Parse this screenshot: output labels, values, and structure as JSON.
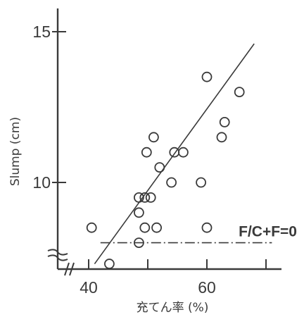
{
  "chart_data": {
    "type": "scatter",
    "xlabel": "充てん率 (%)",
    "ylabel": "Slump (cm)",
    "xlim": [
      34,
      73
    ],
    "ylim": [
      6.5,
      16
    ],
    "x_ticks": [
      40,
      50,
      60,
      70
    ],
    "x_tick_labels": [
      "40",
      "",
      "60",
      ""
    ],
    "y_ticks": [
      10,
      15
    ],
    "y_tick_labels": [
      "10",
      "15"
    ],
    "axis_break": true,
    "grid": false,
    "points": [
      {
        "x": 40.5,
        "y": 8.5
      },
      {
        "x": 43.5,
        "y": 7.3
      },
      {
        "x": 48.5,
        "y": 8.0
      },
      {
        "x": 48.5,
        "y": 9.0
      },
      {
        "x": 48.5,
        "y": 9.5
      },
      {
        "x": 49.5,
        "y": 9.5
      },
      {
        "x": 49.5,
        "y": 8.5
      },
      {
        "x": 50.5,
        "y": 9.5
      },
      {
        "x": 51.5,
        "y": 8.5
      },
      {
        "x": 49.8,
        "y": 11.0
      },
      {
        "x": 51.0,
        "y": 11.5
      },
      {
        "x": 52.0,
        "y": 10.5
      },
      {
        "x": 54.0,
        "y": 10.0
      },
      {
        "x": 54.5,
        "y": 11.0
      },
      {
        "x": 56.0,
        "y": 11.0
      },
      {
        "x": 59.0,
        "y": 10.0
      },
      {
        "x": 60.0,
        "y": 13.5
      },
      {
        "x": 60.0,
        "y": 8.5
      },
      {
        "x": 62.5,
        "y": 11.5
      },
      {
        "x": 63.0,
        "y": 12.0
      },
      {
        "x": 65.5,
        "y": 13.0
      }
    ],
    "fit_line": {
      "x": [
        41.0,
        68.0
      ],
      "y": [
        7.3,
        14.6
      ]
    },
    "reference_line": {
      "y": 8.0,
      "x": [
        42.0,
        71.0
      ],
      "label": "F/C+F=0",
      "style": "dash-dot"
    }
  }
}
